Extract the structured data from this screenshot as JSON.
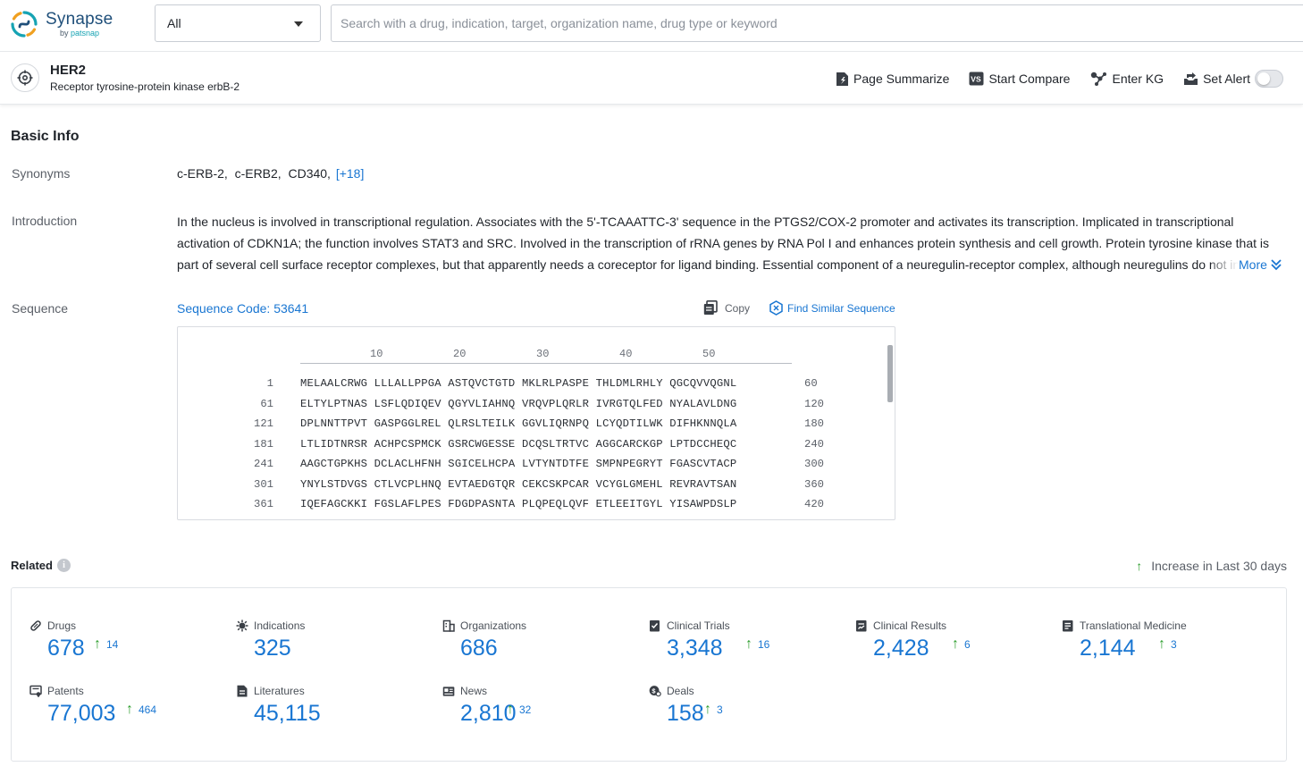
{
  "brand": {
    "name": "Synapse",
    "by": "by",
    "by_brand": "patsnap"
  },
  "search": {
    "scope": "All",
    "placeholder": "Search with a drug, indication, target, organization name, drug type or keyword"
  },
  "entity": {
    "name": "HER2",
    "full_name": "Receptor tyrosine-protein kinase erbB-2",
    "actions": {
      "summarize": "Page Summarize",
      "compare": "Start Compare",
      "kg": "Enter KG",
      "alert": "Set Alert"
    }
  },
  "basic_info": {
    "title": "Basic Info",
    "synonyms_label": "Synonyms",
    "synonyms": "c-ERB-2,  c-ERB2,  CD340,",
    "synonyms_more": "[+18]",
    "intro_label": "Introduction",
    "introduction": "In the nucleus is involved in transcriptional regulation. Associates with the 5'-TCAAATTC-3' sequence in the PTGS2/COX-2 promoter and activates its transcription. Implicated in transcriptional activation of CDKN1A; the function involves STAT3 and SRC. Involved in the transcription of rRNA genes by RNA Pol I and enhances protein synthesis and cell growth. Protein tyrosine kinase that is part of several cell surface receptor complexes, but that apparently needs a coreceptor for ligand binding. Essential component of a neuregulin-receptor complex, although neuregulins do not interact with it alone.",
    "intro_more": "More",
    "sequence_label": "Sequence",
    "sequence_code": "Sequence Code: 53641",
    "copy": "Copy",
    "find_similar": "Find Similar Sequence",
    "ruler": [
      "10",
      "20",
      "30",
      "40",
      "50"
    ],
    "sequence_lines": [
      {
        "start": "1",
        "residues": "MELAALCRWG LLLALLPPGA ASTQVCTGTD MKLRLPASPE THLDMLRHLY QGCQVVQGNL",
        "end": "60"
      },
      {
        "start": "61",
        "residues": "ELTYLPTNAS LSFLQDIQEV QGYVLIAHNQ VRQVPLQRLR IVRGTQLFED NYALAVLDNG",
        "end": "120"
      },
      {
        "start": "121",
        "residues": "DPLNNTTPVT GASPGGLREL QLRSLTEILK GGVLIQRNPQ LCYQDTILWK DIFHKNNQLA",
        "end": "180"
      },
      {
        "start": "181",
        "residues": "LTLIDTNRSR ACHPCSPMCK GSRCWGESSE DCQSLTRTVC AGGCARCKGP LPTDCCHEQC",
        "end": "240"
      },
      {
        "start": "241",
        "residues": "AAGCTGPKHS DCLACLHFNH SGICELHCPA LVTYNTDTFE SMPNPEGRYT FGASCVTACP",
        "end": "300"
      },
      {
        "start": "301",
        "residues": "YNYLSTDVGS CTLVCPLHNQ EVTAEDGTQR CEKCSKPCAR VCYGLGMEHL REVRAVTSAN",
        "end": "360"
      },
      {
        "start": "361",
        "residues": "IQEFAGCKKI FGSLAFLPES FDGDPASNTA PLQPEQLQVF ETLEEITGYL YISAWPDSLP",
        "end": "420"
      }
    ]
  },
  "related": {
    "title": "Related",
    "legend": "Increase in Last 30 days",
    "legend_icon": "green-up-arrow",
    "accent_color": "#1976d2",
    "increase_color": "#2e9e2e",
    "stats": [
      {
        "key": "drugs",
        "label": "Drugs",
        "value": "678",
        "increase": "14",
        "icon": "pill-icon"
      },
      {
        "key": "indications",
        "label": "Indications",
        "value": "325",
        "increase": null,
        "icon": "virus-icon"
      },
      {
        "key": "organizations",
        "label": "Organizations",
        "value": "686",
        "increase": null,
        "icon": "building-icon"
      },
      {
        "key": "clinical_trials",
        "label": "Clinical Trials",
        "value": "3,348",
        "increase": "16",
        "icon": "clipboard-icon"
      },
      {
        "key": "clinical_results",
        "label": "Clinical Results",
        "value": "2,428",
        "increase": "6",
        "icon": "report-icon"
      },
      {
        "key": "translational_medicine",
        "label": "Translational Medicine",
        "value": "2,144",
        "increase": "3",
        "icon": "document-icon"
      },
      {
        "key": "patents",
        "label": "Patents",
        "value": "77,003",
        "increase": "464",
        "icon": "patent-icon"
      },
      {
        "key": "literatures",
        "label": "Literatures",
        "value": "45,115",
        "increase": null,
        "icon": "file-icon"
      },
      {
        "key": "news",
        "label": "News",
        "value": "2,810",
        "increase": "32",
        "icon": "newspaper-icon"
      },
      {
        "key": "deals",
        "label": "Deals",
        "value": "158",
        "increase": "3",
        "icon": "deal-icon"
      }
    ]
  }
}
